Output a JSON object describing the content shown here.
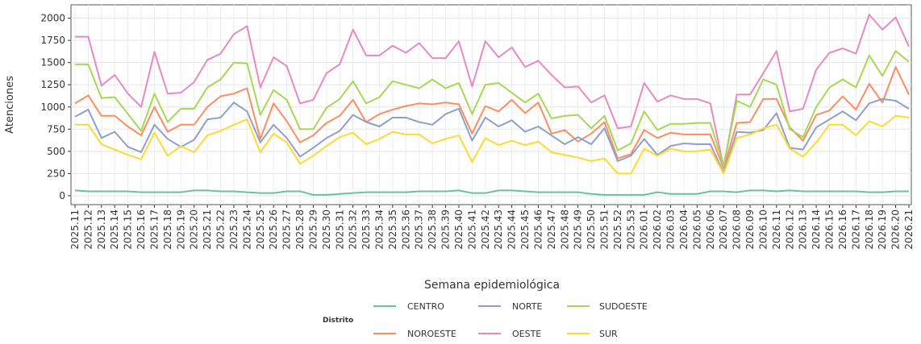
{
  "chart_data": {
    "type": "line",
    "x_label": "Semana epidemiológica",
    "y_label": "Atenciones",
    "legend_title": "Distrito",
    "legend_position": "bottom",
    "grid": true,
    "ylim": [
      -100,
      2150
    ],
    "yticks": [
      0,
      250,
      500,
      750,
      1000,
      1250,
      1500,
      1750,
      2000
    ],
    "categories": [
      "2025.11",
      "2025.12",
      "2025.13",
      "2025.14",
      "2025.15",
      "2025.16",
      "2025.17",
      "2025.18",
      "2025.19",
      "2025.20",
      "2025.21",
      "2025.22",
      "2025.23",
      "2025.24",
      "2025.25",
      "2025.26",
      "2025.27",
      "2025.28",
      "2025.29",
      "2025.30",
      "2025.31",
      "2025.32",
      "2025.33",
      "2025.34",
      "2025.35",
      "2025.36",
      "2025.37",
      "2025.38",
      "2025.39",
      "2025.40",
      "2025.41",
      "2025.42",
      "2025.43",
      "2025.44",
      "2025.45",
      "2025.46",
      "2025.47",
      "2025.48",
      "2025.49",
      "2025.50",
      "2025.51",
      "2025.52",
      "2025.53",
      "2026.01",
      "2026.02",
      "2026.03",
      "2026.04",
      "2026.05",
      "2026.06",
      "2026.07",
      "2026.08",
      "2026.09",
      "2026.10",
      "2026.11",
      "2026.12",
      "2026.13",
      "2026.14",
      "2026.15",
      "2026.16",
      "2026.17",
      "2026.18",
      "2026.19",
      "2026.20",
      "2026.21"
    ],
    "series": [
      {
        "name": "CENTRO",
        "color": "#66c2a5",
        "values": [
          60,
          50,
          50,
          50,
          50,
          40,
          40,
          40,
          40,
          60,
          60,
          50,
          50,
          40,
          30,
          30,
          50,
          50,
          10,
          10,
          20,
          30,
          40,
          40,
          40,
          40,
          50,
          50,
          50,
          60,
          30,
          30,
          60,
          60,
          50,
          40,
          40,
          40,
          40,
          20,
          10,
          10,
          10,
          10,
          40,
          20,
          20,
          20,
          50,
          50,
          40,
          60,
          60,
          50,
          60,
          50,
          50,
          50,
          50,
          50,
          40,
          40,
          50,
          50
        ]
      },
      {
        "name": "NOROESTE",
        "color": "#fc8d62",
        "values": [
          1040,
          1130,
          900,
          900,
          780,
          680,
          1000,
          720,
          800,
          800,
          1000,
          1120,
          1150,
          1210,
          640,
          1040,
          840,
          600,
          680,
          820,
          900,
          1080,
          830,
          920,
          970,
          1010,
          1040,
          1030,
          1050,
          1030,
          700,
          1010,
          950,
          1080,
          930,
          1050,
          700,
          740,
          610,
          700,
          830,
          420,
          470,
          740,
          650,
          710,
          690,
          690,
          690,
          310,
          820,
          830,
          1090,
          1090,
          770,
          620,
          910,
          960,
          1120,
          970,
          1260,
          1050,
          1450,
          1140
        ]
      },
      {
        "name": "NORTE",
        "color": "#8da0cb",
        "values": [
          890,
          970,
          650,
          720,
          550,
          490,
          800,
          640,
          550,
          630,
          860,
          880,
          1050,
          950,
          600,
          800,
          650,
          440,
          540,
          650,
          730,
          910,
          830,
          780,
          880,
          880,
          830,
          800,
          920,
          980,
          620,
          880,
          780,
          850,
          720,
          780,
          680,
          580,
          660,
          580,
          760,
          390,
          450,
          640,
          460,
          560,
          590,
          580,
          580,
          260,
          720,
          710,
          740,
          930,
          540,
          520,
          770,
          860,
          950,
          850,
          1040,
          1090,
          1070,
          980
        ]
      },
      {
        "name": "OESTE",
        "color": "#e78ac3",
        "values": [
          1790,
          1790,
          1240,
          1360,
          1150,
          1000,
          1620,
          1150,
          1160,
          1280,
          1530,
          1600,
          1820,
          1910,
          1220,
          1560,
          1460,
          1040,
          1080,
          1380,
          1480,
          1870,
          1580,
          1580,
          1690,
          1610,
          1720,
          1550,
          1550,
          1740,
          1230,
          1740,
          1560,
          1670,
          1450,
          1520,
          1360,
          1220,
          1230,
          1050,
          1130,
          760,
          780,
          1270,
          1060,
          1130,
          1090,
          1090,
          1040,
          320,
          1140,
          1140,
          1380,
          1630,
          950,
          980,
          1420,
          1610,
          1660,
          1600,
          2040,
          1870,
          2010,
          1680
        ]
      },
      {
        "name": "SUDOESTE",
        "color": "#a6d854",
        "values": [
          1480,
          1480,
          1100,
          1110,
          920,
          730,
          1150,
          830,
          980,
          980,
          1220,
          1310,
          1500,
          1490,
          910,
          1190,
          1080,
          750,
          750,
          990,
          1090,
          1290,
          1040,
          1110,
          1290,
          1250,
          1210,
          1310,
          1210,
          1270,
          920,
          1250,
          1270,
          1160,
          1050,
          1150,
          870,
          900,
          910,
          760,
          900,
          510,
          590,
          950,
          740,
          810,
          810,
          820,
          820,
          340,
          1070,
          1000,
          1310,
          1250,
          750,
          660,
          1000,
          1220,
          1310,
          1220,
          1580,
          1350,
          1630,
          1510
        ]
      },
      {
        "name": "SUR",
        "color": "#ffd92f",
        "values": [
          800,
          800,
          580,
          520,
          460,
          410,
          710,
          450,
          560,
          490,
          680,
          730,
          800,
          860,
          490,
          700,
          600,
          360,
          450,
          560,
          660,
          710,
          580,
          640,
          720,
          690,
          690,
          590,
          640,
          680,
          380,
          650,
          570,
          620,
          570,
          610,
          490,
          460,
          430,
          390,
          420,
          250,
          250,
          530,
          450,
          530,
          500,
          500,
          520,
          250,
          650,
          690,
          760,
          800,
          530,
          440,
          600,
          800,
          800,
          680,
          840,
          780,
          900,
          880
        ]
      }
    ]
  }
}
